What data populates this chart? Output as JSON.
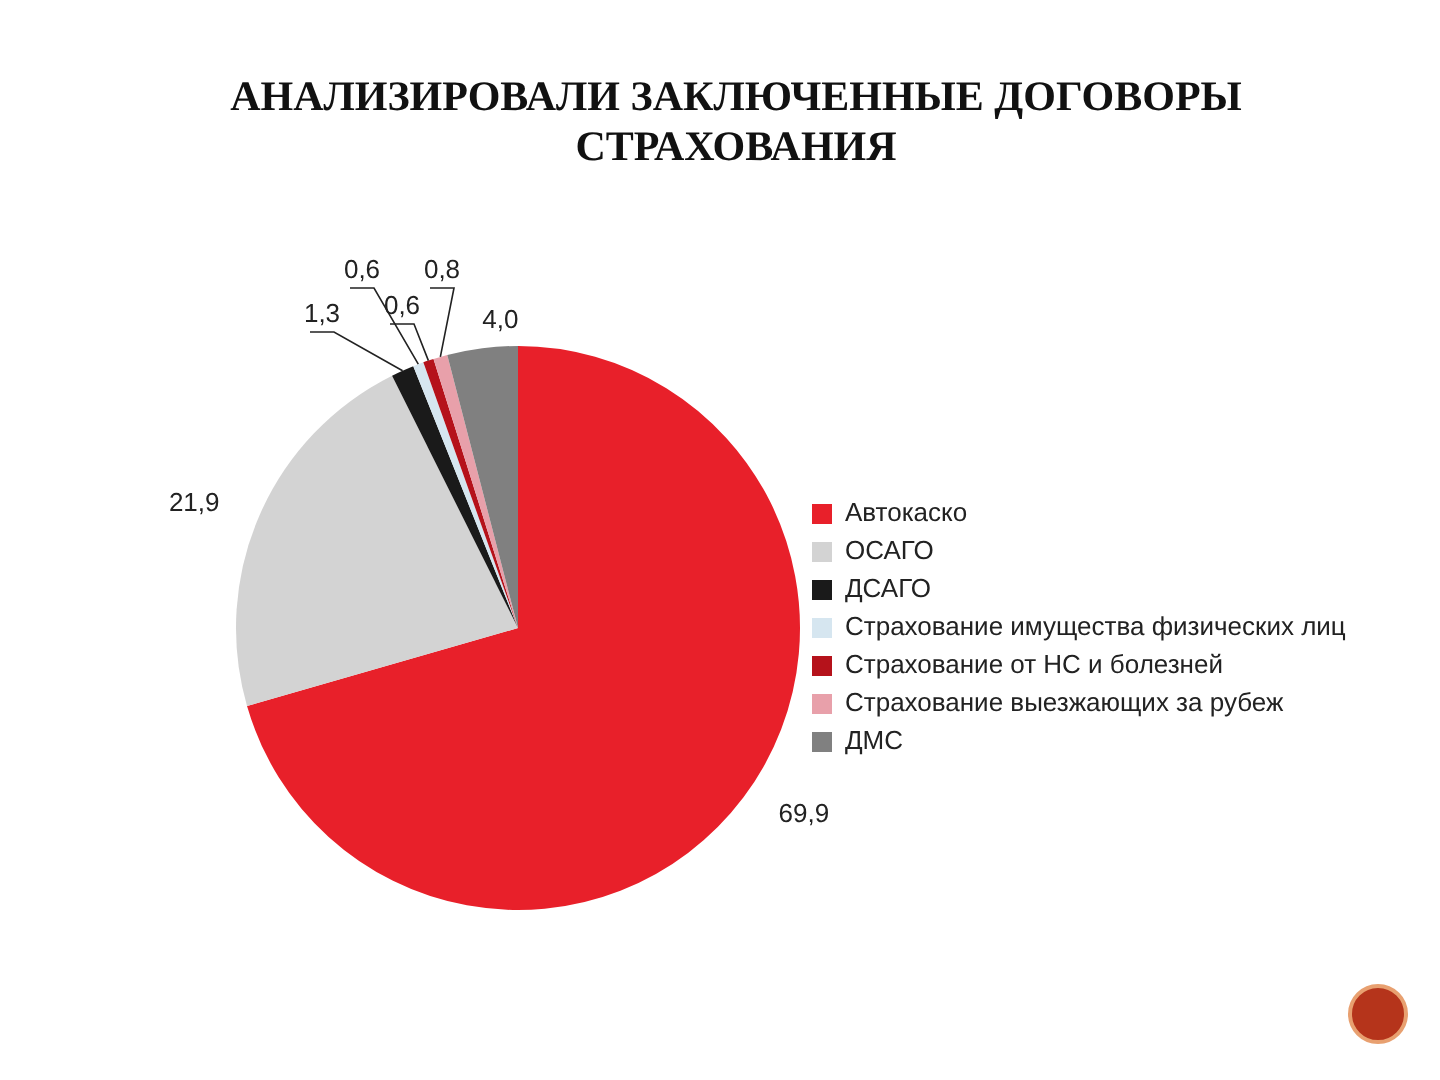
{
  "chart_data": {
    "type": "pie",
    "title": "АНАЛИЗИРОВАЛИ ЗАКЛЮЧЕННЫЕ ДОГОВОРЫ СТРАХОВАНИЯ",
    "categories": [
      "Автокаско",
      "ОСАГО",
      "ДСАГО",
      "Страхование имущества физических лиц",
      "Страхование от НС и болезней",
      "Страхование выезжающих за рубеж",
      "ДМС"
    ],
    "values": [
      69.9,
      21.9,
      1.3,
      0.6,
      0.6,
      0.8,
      4.0
    ],
    "value_labels": [
      "69,9",
      "21,9",
      "1,3",
      "0,6",
      "0,6",
      "0,8",
      "4,0"
    ],
    "colors": [
      "#e8202a",
      "#d3d3d3",
      "#1a1a1a",
      "#d6e6f0",
      "#b5121b",
      "#e8a0aa",
      "#808080"
    ],
    "legend": "right"
  }
}
